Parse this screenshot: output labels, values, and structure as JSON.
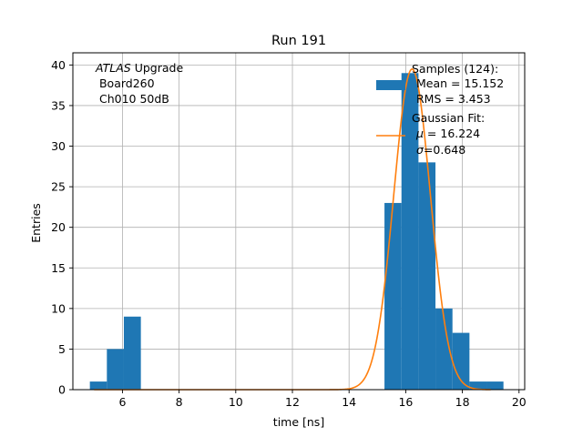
{
  "chart_data": {
    "type": "bar",
    "title": "Run 191",
    "xlabel": "time [ns]",
    "ylabel": "Entries",
    "xlim": [
      4.25,
      20.2
    ],
    "ylim": [
      0,
      41.5
    ],
    "grid": true,
    "xticks": [
      6,
      8,
      10,
      12,
      14,
      16,
      18,
      20
    ],
    "yticks": [
      0,
      5,
      10,
      15,
      20,
      25,
      30,
      35,
      40
    ],
    "annotation": {
      "line1_italic": "ATLAS",
      "line1_rest": " Upgrade",
      "line2": " Board260",
      "line3": " Ch010 50dB"
    },
    "histogram": {
      "name": "Samples (124):",
      "color": "#1f77b4",
      "bins": [
        {
          "x0": 4.85,
          "x1": 5.45,
          "count": 1
        },
        {
          "x0": 5.45,
          "x1": 6.05,
          "count": 5
        },
        {
          "x0": 6.05,
          "x1": 6.65,
          "count": 9
        },
        {
          "x0": 15.25,
          "x1": 15.85,
          "count": 23
        },
        {
          "x0": 15.85,
          "x1": 16.45,
          "count": 39
        },
        {
          "x0": 16.45,
          "x1": 17.05,
          "count": 28
        },
        {
          "x0": 17.05,
          "x1": 17.65,
          "count": 10
        },
        {
          "x0": 17.65,
          "x1": 18.25,
          "count": 7
        },
        {
          "x0": 18.25,
          "x1": 18.85,
          "count": 1
        },
        {
          "x0": 18.85,
          "x1": 19.45,
          "count": 1
        }
      ]
    },
    "fit": {
      "name": "Gaussian Fit:",
      "color": "#ff7f0e",
      "mu": 16.224,
      "sigma": 0.648,
      "amplitude": 39.5,
      "x_range": [
        5.0,
        19.0
      ]
    },
    "legend": {
      "position": "top-right",
      "samples_label": "Samples (124):",
      "mean_line": "Mean = 15.152",
      "rms_line": "RMS = 3.453",
      "fit_label": "Gaussian Fit:",
      "mu_symbol": "μ",
      "mu_value": " = 16.224",
      "sigma_symbol": "σ",
      "sigma_value": "=0.648"
    }
  }
}
